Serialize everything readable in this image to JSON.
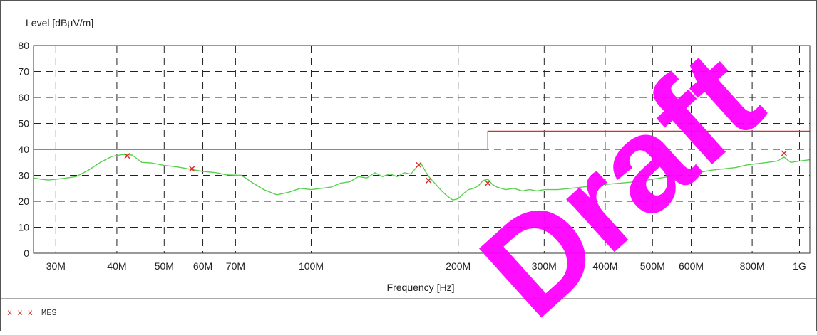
{
  "chart_data": {
    "type": "line",
    "ylabel": "Level [dBµV/m]",
    "xlabel": "Frequency [Hz]",
    "x_scale": "log",
    "ylim": [
      0,
      80
    ],
    "xlim_hz": [
      27000000,
      1050000000
    ],
    "yticks": [
      0,
      10,
      20,
      30,
      40,
      50,
      60,
      70,
      80
    ],
    "xticks": [
      {
        "value": 30000000,
        "label": "30M"
      },
      {
        "value": 40000000,
        "label": "40M"
      },
      {
        "value": 50000000,
        "label": "50M"
      },
      {
        "value": 60000000,
        "label": "60M"
      },
      {
        "value": 70000000,
        "label": "70M"
      },
      {
        "value": 100000000,
        "label": "100M"
      },
      {
        "value": 200000000,
        "label": "200M"
      },
      {
        "value": 300000000,
        "label": "300M"
      },
      {
        "value": 400000000,
        "label": "400M"
      },
      {
        "value": 500000000,
        "label": "500M"
      },
      {
        "value": 600000000,
        "label": "600M"
      },
      {
        "value": 800000000,
        "label": "800M"
      },
      {
        "value": 1000000000,
        "label": "1G"
      }
    ],
    "grid": true,
    "series": [
      {
        "role": "limit",
        "color": "#d8302a",
        "points": [
          [
            27000000,
            40
          ],
          [
            230000000,
            40
          ],
          [
            230000000,
            47
          ],
          [
            1050000000,
            47
          ]
        ]
      },
      {
        "role": "scan",
        "color": "#58d150",
        "points": [
          [
            27000000,
            29
          ],
          [
            28000000,
            28.5
          ],
          [
            29000000,
            28.2
          ],
          [
            30000000,
            28.5
          ],
          [
            31000000,
            28.8
          ],
          [
            33000000,
            29.5
          ],
          [
            35000000,
            32
          ],
          [
            37000000,
            35
          ],
          [
            39000000,
            37.2
          ],
          [
            41000000,
            38
          ],
          [
            43000000,
            37.8
          ],
          [
            45000000,
            35
          ],
          [
            47000000,
            34.8
          ],
          [
            50000000,
            33.8
          ],
          [
            53000000,
            33.3
          ],
          [
            56000000,
            32.5
          ],
          [
            60000000,
            31.5
          ],
          [
            64000000,
            31
          ],
          [
            67000000,
            30.2
          ],
          [
            72000000,
            30
          ],
          [
            76000000,
            27
          ],
          [
            80000000,
            24.5
          ],
          [
            85000000,
            22.5
          ],
          [
            90000000,
            23.5
          ],
          [
            95000000,
            25
          ],
          [
            100000000,
            24.5
          ],
          [
            105000000,
            25
          ],
          [
            110000000,
            25.5
          ],
          [
            115000000,
            27
          ],
          [
            120000000,
            27.5
          ],
          [
            125000000,
            29.5
          ],
          [
            130000000,
            29
          ],
          [
            135000000,
            31
          ],
          [
            140000000,
            29.5
          ],
          [
            145000000,
            30.5
          ],
          [
            150000000,
            29.5
          ],
          [
            155000000,
            31
          ],
          [
            160000000,
            30.5
          ],
          [
            165000000,
            33.5
          ],
          [
            168000000,
            34.5
          ],
          [
            172000000,
            31
          ],
          [
            175000000,
            29
          ],
          [
            180000000,
            26.5
          ],
          [
            185000000,
            24
          ],
          [
            190000000,
            22
          ],
          [
            195000000,
            20.5
          ],
          [
            200000000,
            21
          ],
          [
            205000000,
            23
          ],
          [
            210000000,
            24.5
          ],
          [
            215000000,
            25
          ],
          [
            220000000,
            26
          ],
          [
            225000000,
            28
          ],
          [
            230000000,
            28.5
          ],
          [
            235000000,
            26.5
          ],
          [
            240000000,
            25.5
          ],
          [
            250000000,
            24.5
          ],
          [
            260000000,
            25
          ],
          [
            270000000,
            24
          ],
          [
            280000000,
            24.5
          ],
          [
            290000000,
            24
          ],
          [
            300000000,
            24.5
          ],
          [
            320000000,
            24.5
          ],
          [
            340000000,
            25
          ],
          [
            360000000,
            25.5
          ],
          [
            380000000,
            26
          ],
          [
            400000000,
            26.5
          ],
          [
            430000000,
            27
          ],
          [
            460000000,
            27.5
          ],
          [
            500000000,
            28.5
          ],
          [
            540000000,
            29.5
          ],
          [
            580000000,
            30.5
          ],
          [
            620000000,
            31
          ],
          [
            660000000,
            32
          ],
          [
            700000000,
            32.5
          ],
          [
            740000000,
            33
          ],
          [
            780000000,
            34
          ],
          [
            820000000,
            34.5
          ],
          [
            860000000,
            35
          ],
          [
            900000000,
            35.5
          ],
          [
            930000000,
            37
          ],
          [
            960000000,
            35
          ],
          [
            1000000000,
            35.5
          ],
          [
            1050000000,
            36
          ]
        ]
      }
    ],
    "markers": {
      "symbol": "x",
      "color": "#d8302a",
      "points": [
        [
          42000000,
          37.5
        ],
        [
          57000000,
          32.5
        ],
        [
          166000000,
          34
        ],
        [
          174000000,
          28
        ],
        [
          230000000,
          27
        ],
        [
          930000000,
          38.5
        ]
      ]
    }
  },
  "legend": {
    "marker_glyphs": "x x x",
    "label": "MES"
  },
  "watermark": "Draft"
}
